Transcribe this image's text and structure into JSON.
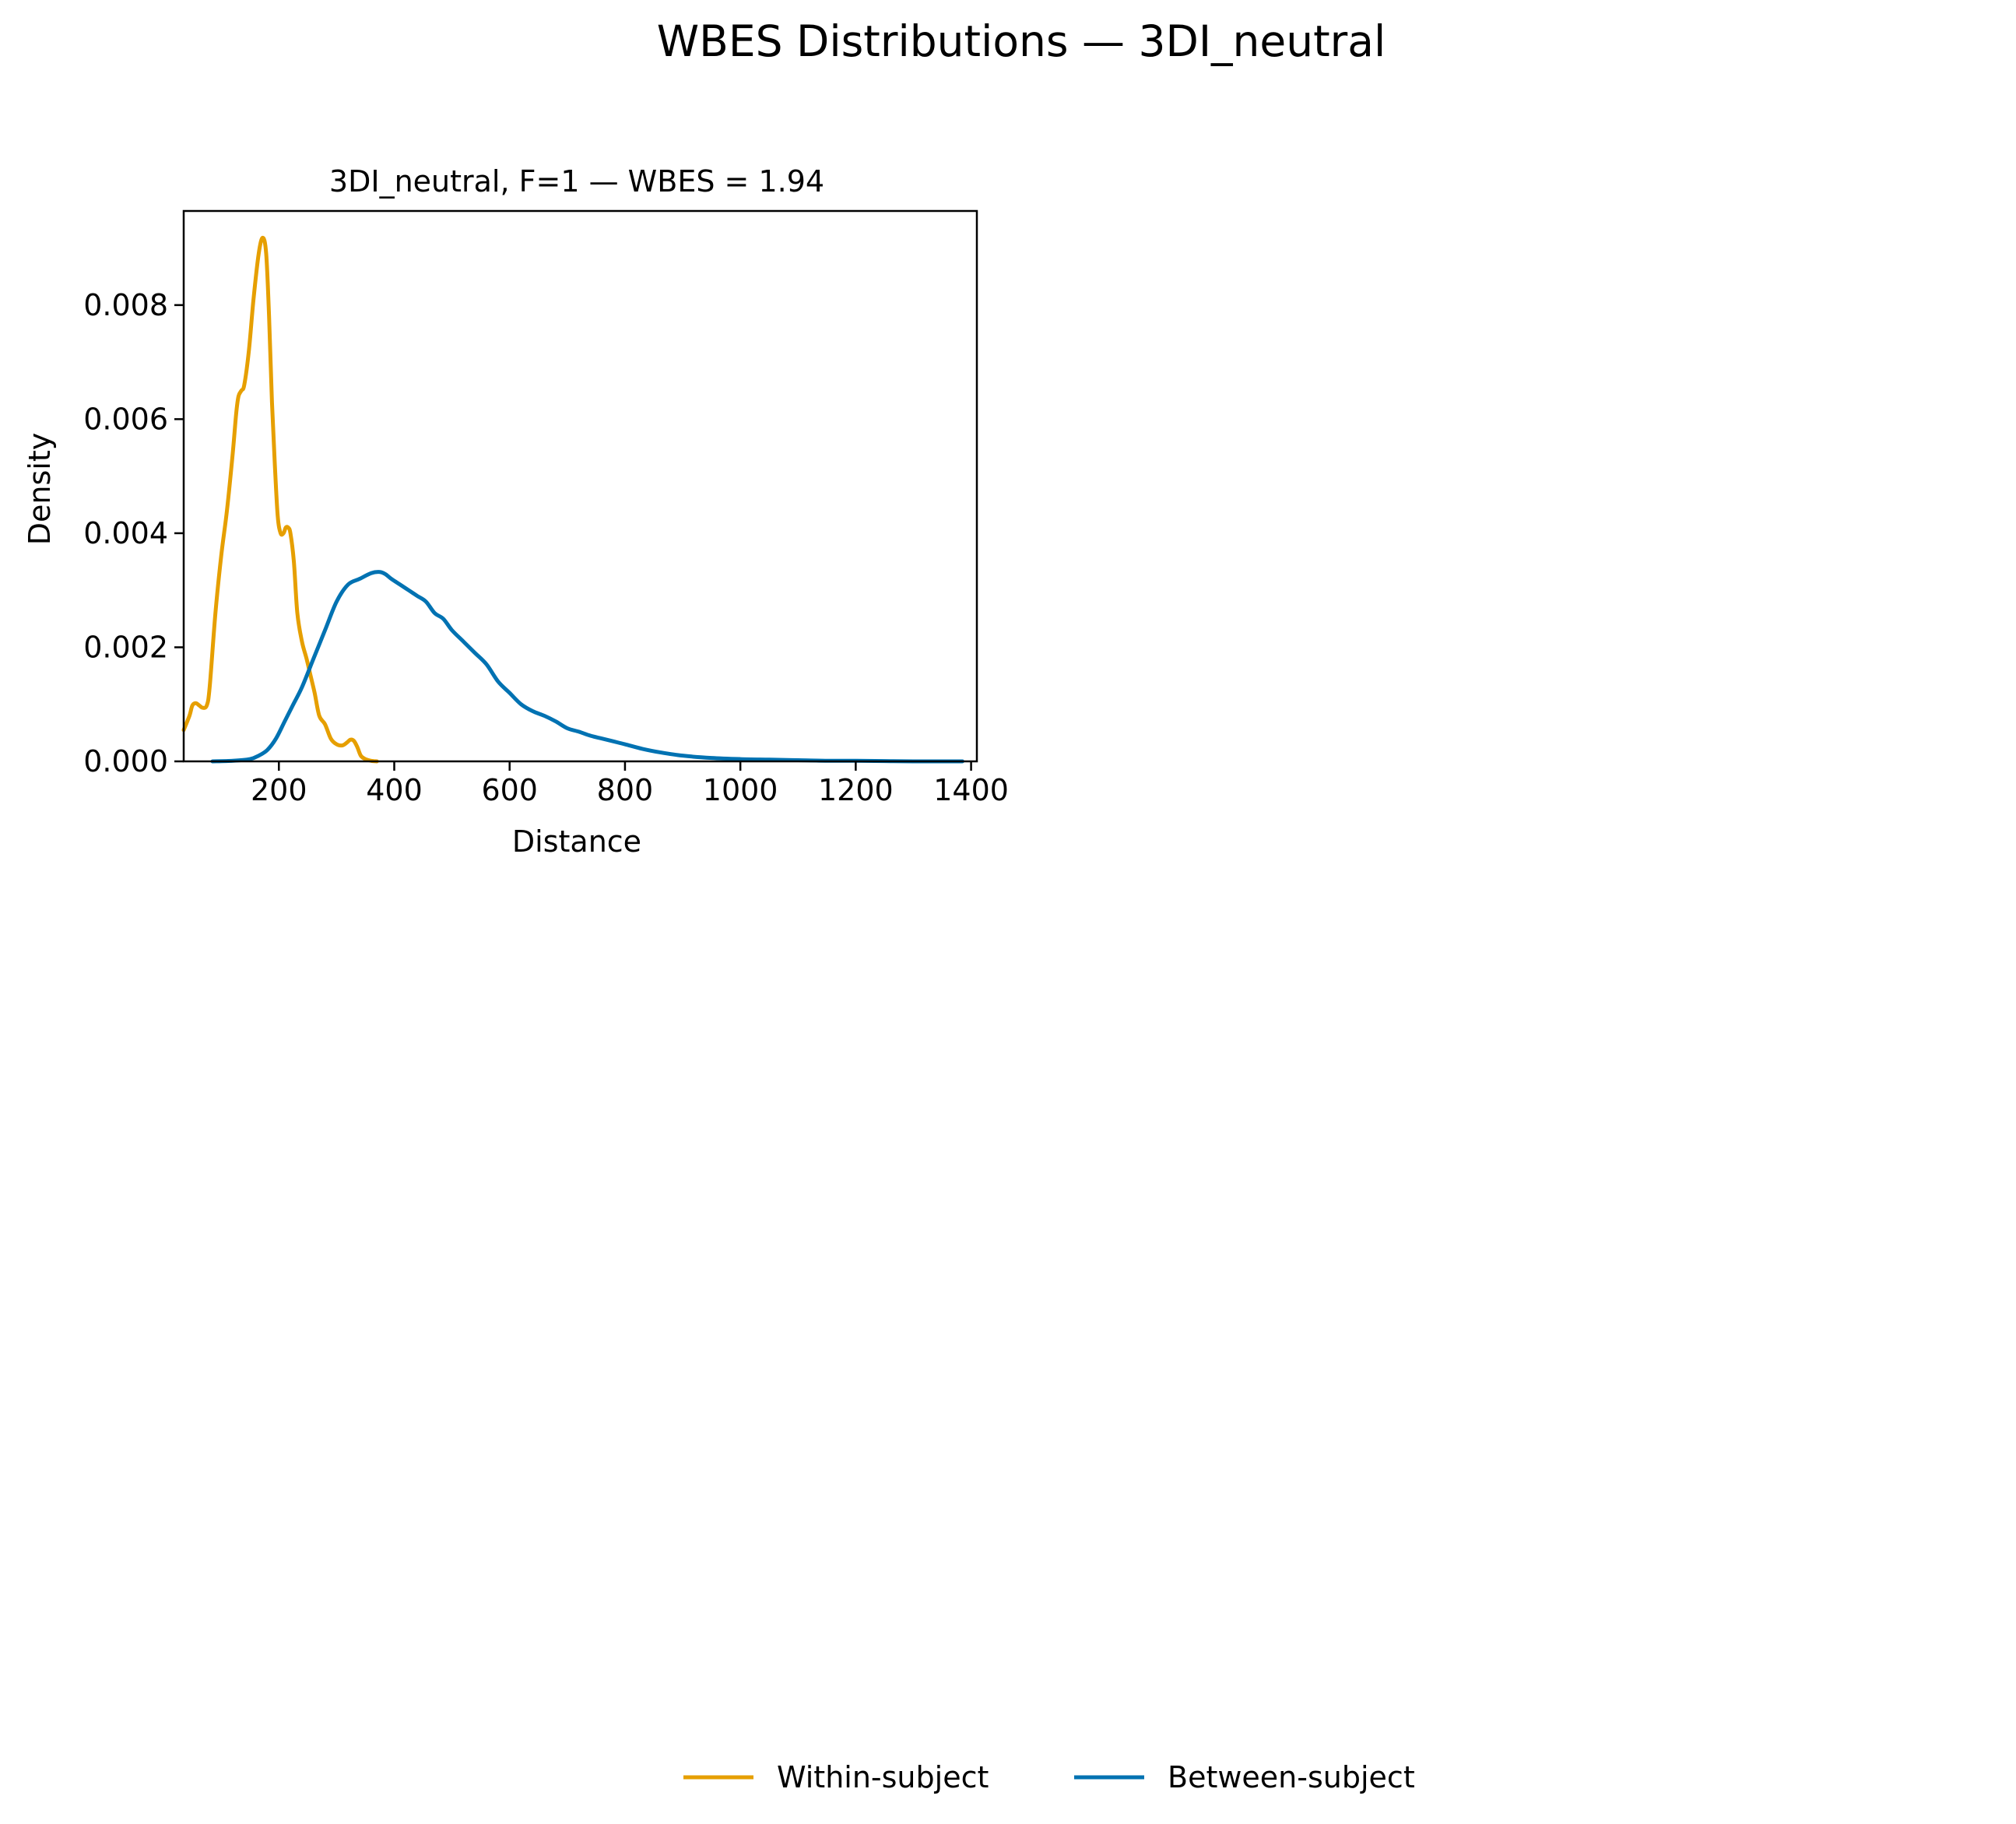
{
  "figure": {
    "suptitle": "WBES Distributions — 3DI_neutral"
  },
  "chart_data": {
    "type": "line",
    "title": "3DI_neutral, F=1 — WBES = 1.94",
    "xlabel": "Distance",
    "ylabel": "Density",
    "xlim": [
      35,
      1410
    ],
    "ylim": [
      0,
      0.00965
    ],
    "xticks": [
      200,
      400,
      600,
      800,
      1000,
      1200,
      1400
    ],
    "xtick_labels": [
      "200",
      "400",
      "600",
      "800",
      "1000",
      "1200",
      "1400"
    ],
    "yticks": [
      0,
      0.002,
      0.004,
      0.006,
      0.008
    ],
    "ytick_labels": [
      "0.000",
      "0.002",
      "0.004",
      "0.006",
      "0.008"
    ],
    "grid": false,
    "legend_position": "bottom-center",
    "series": [
      {
        "name": "Within-subject",
        "color": "#E69F00",
        "x": [
          35,
          45,
          50,
          56,
          62,
          68,
          75,
          80,
          90,
          100,
          110,
          120,
          126,
          130,
          135,
          140,
          148,
          156,
          165,
          172,
          178,
          183,
          188,
          193,
          198,
          203,
          208,
          212,
          216,
          220,
          226,
          232,
          240,
          248,
          255,
          262,
          270,
          280,
          290,
          300,
          310,
          318,
          324,
          330,
          336,
          342,
          350,
          360,
          370
        ],
        "y": [
          0.00055,
          0.0008,
          0.00098,
          0.00102,
          0.00098,
          0.00094,
          0.00098,
          0.0013,
          0.0026,
          0.0036,
          0.0044,
          0.0054,
          0.0061,
          0.0064,
          0.0065,
          0.0066,
          0.0072,
          0.0081,
          0.0089,
          0.00918,
          0.0089,
          0.0078,
          0.0063,
          0.0052,
          0.0043,
          0.004,
          0.004,
          0.0041,
          0.0041,
          0.004,
          0.0035,
          0.0026,
          0.0021,
          0.0018,
          0.0015,
          0.0012,
          0.0008,
          0.00065,
          0.0004,
          0.0003,
          0.00028,
          0.00033,
          0.00038,
          0.00036,
          0.00025,
          0.0001,
          4e-05,
          1e-05,
          0.0
        ]
      },
      {
        "name": "Between-subject",
        "color": "#0072B2",
        "x": [
          85,
          120,
          150,
          165,
          180,
          195,
          210,
          225,
          240,
          260,
          280,
          300,
          320,
          340,
          360,
          375,
          385,
          395,
          410,
          425,
          440,
          455,
          470,
          485,
          500,
          520,
          540,
          560,
          580,
          600,
          620,
          640,
          660,
          680,
          700,
          720,
          740,
          760,
          780,
          800,
          830,
          860,
          900,
          950,
          1000,
          1050,
          1100,
          1150,
          1200,
          1250,
          1300,
          1350,
          1385
        ],
        "y": [
          0.0,
          1e-05,
          4e-05,
          0.0001,
          0.0002,
          0.0004,
          0.0007,
          0.001,
          0.0013,
          0.0018,
          0.0023,
          0.0028,
          0.0031,
          0.0032,
          0.0033,
          0.00332,
          0.00328,
          0.0032,
          0.0031,
          0.003,
          0.0029,
          0.0028,
          0.0026,
          0.0025,
          0.0023,
          0.0021,
          0.0019,
          0.0017,
          0.0014,
          0.0012,
          0.001,
          0.00088,
          0.0008,
          0.0007,
          0.00058,
          0.00052,
          0.00045,
          0.0004,
          0.00035,
          0.0003,
          0.00022,
          0.00016,
          0.0001,
          6e-05,
          4e-05,
          3e-05,
          2e-05,
          1e-05,
          1e-05,
          5e-06,
          0.0,
          0.0,
          0.0
        ]
      }
    ]
  }
}
